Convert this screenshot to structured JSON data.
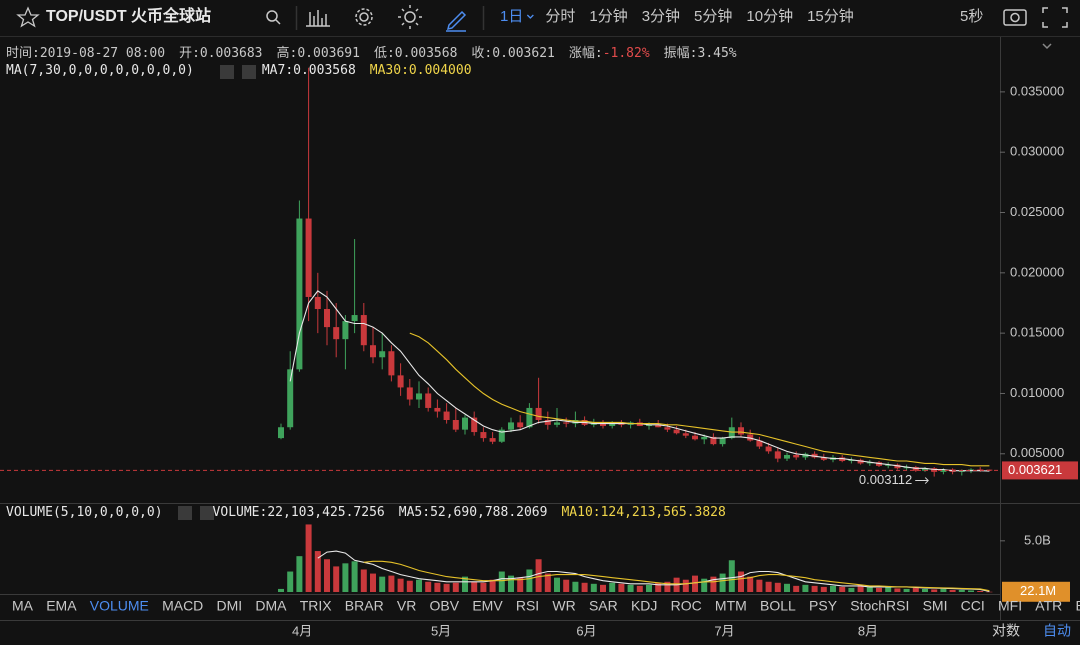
{
  "toolbar": {
    "symbol": "TOP/USDT 火币全球站",
    "intervals": [
      "1日",
      "分时",
      "1分钟",
      "3分钟",
      "5分钟",
      "10分钟",
      "15分钟"
    ],
    "active_interval": 0,
    "refresh": "5秒"
  },
  "info": [
    {
      "label": "时间:",
      "value": "2019-08-27 08:00"
    },
    {
      "label": "开:",
      "value": "0.003683"
    },
    {
      "label": "高:",
      "value": "0.003691"
    },
    {
      "label": "低:",
      "value": "0.003568"
    },
    {
      "label": "收:",
      "value": "0.003621"
    },
    {
      "label": "涨幅:",
      "value": "-1.82%"
    },
    {
      "label": "振幅:",
      "value": "3.45%"
    }
  ],
  "ma_legend": {
    "title": "MA(7,30,0,0,0,0,0,0,0,0)",
    "ma7": {
      "label": "MA7:",
      "value": "0.003568"
    },
    "ma30": {
      "label": "MA30:",
      "value": "0.004000"
    }
  },
  "volume_legend": {
    "title": "VOLUME(5,10,0,0,0,0)",
    "items": [
      {
        "label": "VOLUME:",
        "value": "22,103,425.7256"
      },
      {
        "label": "MA5:",
        "value": "52,690,788.2069"
      },
      {
        "label": "MA10:",
        "value": "124,213,565.3828"
      }
    ]
  },
  "chart_data": {
    "type": "candlestick",
    "up_color": "#3fa35c",
    "down_color": "#c9393c",
    "ma7_color": "#e8e8e8",
    "ma30_color": "#e6c229",
    "candles": {
      "open": [
        0.0063,
        0.0072,
        0.012,
        0.0245,
        0.018,
        0.017,
        0.0155,
        0.0145,
        0.016,
        0.0165,
        0.014,
        0.013,
        0.0135,
        0.0115,
        0.0105,
        0.0095,
        0.01,
        0.0088,
        0.0085,
        0.0078,
        0.007,
        0.008,
        0.0068,
        0.0063,
        0.006,
        0.007,
        0.0076,
        0.0072,
        0.0088,
        0.0078,
        0.0074,
        0.0076,
        0.0075,
        0.0078,
        0.0074,
        0.0076,
        0.0073,
        0.0075,
        0.0074,
        0.0076,
        0.0073,
        0.0074,
        0.0072,
        0.007,
        0.0067,
        0.0065,
        0.0062,
        0.0064,
        0.0058,
        0.0063,
        0.0072,
        0.0066,
        0.0061,
        0.0056,
        0.0052,
        0.0046,
        0.0049,
        0.0047,
        0.005,
        0.0047,
        0.0045,
        0.0047,
        0.0044,
        0.0045,
        0.0042,
        0.0043,
        0.004,
        0.0041,
        0.0038,
        0.0039,
        0.0036,
        0.0038,
        0.0035,
        0.0037,
        0.0035,
        0.0036,
        0.0037,
        0.003683
      ],
      "high": [
        0.0075,
        0.0135,
        0.026,
        0.037,
        0.02,
        0.0185,
        0.0175,
        0.0165,
        0.0228,
        0.0175,
        0.0155,
        0.015,
        0.014,
        0.0125,
        0.0112,
        0.011,
        0.0105,
        0.0095,
        0.0092,
        0.0088,
        0.0082,
        0.0085,
        0.0072,
        0.0068,
        0.0072,
        0.008,
        0.0082,
        0.0092,
        0.0113,
        0.0085,
        0.0088,
        0.008,
        0.0085,
        0.0081,
        0.0079,
        0.0078,
        0.0077,
        0.0078,
        0.0077,
        0.0079,
        0.0076,
        0.0078,
        0.0075,
        0.0073,
        0.007,
        0.0068,
        0.0066,
        0.0067,
        0.0064,
        0.008,
        0.0076,
        0.007,
        0.0064,
        0.0059,
        0.0055,
        0.0051,
        0.0052,
        0.0051,
        0.0052,
        0.005,
        0.0049,
        0.0049,
        0.0047,
        0.0046,
        0.0045,
        0.0044,
        0.0043,
        0.0042,
        0.0041,
        0.004,
        0.0039,
        0.0039,
        0.0038,
        0.0038,
        0.0037,
        0.0038,
        0.0039,
        0.003691
      ],
      "low": [
        0.0062,
        0.007,
        0.0118,
        0.016,
        0.015,
        0.014,
        0.013,
        0.012,
        0.015,
        0.0135,
        0.0125,
        0.012,
        0.011,
        0.0098,
        0.009,
        0.0088,
        0.0085,
        0.008,
        0.0075,
        0.0068,
        0.0066,
        0.0065,
        0.006,
        0.0058,
        0.0059,
        0.0068,
        0.007,
        0.0071,
        0.0075,
        0.007,
        0.0072,
        0.0072,
        0.0072,
        0.0073,
        0.0072,
        0.0071,
        0.0071,
        0.0072,
        0.0071,
        0.0073,
        0.007,
        0.0072,
        0.0068,
        0.0066,
        0.0063,
        0.0061,
        0.0058,
        0.0057,
        0.0056,
        0.0062,
        0.0064,
        0.006,
        0.0054,
        0.005,
        0.0043,
        0.0044,
        0.0045,
        0.0045,
        0.0046,
        0.0044,
        0.0043,
        0.0043,
        0.0042,
        0.0041,
        0.004,
        0.0039,
        0.0038,
        0.0037,
        0.0036,
        0.0035,
        0.0035,
        0.003112,
        0.0033,
        0.0033,
        0.0032,
        0.0034,
        0.0035,
        0.003568
      ],
      "close": [
        0.0072,
        0.012,
        0.0245,
        0.018,
        0.017,
        0.0155,
        0.0145,
        0.016,
        0.0165,
        0.014,
        0.013,
        0.0135,
        0.0115,
        0.0105,
        0.0095,
        0.01,
        0.0088,
        0.0085,
        0.0078,
        0.007,
        0.008,
        0.0068,
        0.0063,
        0.006,
        0.007,
        0.0076,
        0.0072,
        0.0088,
        0.0078,
        0.0074,
        0.0076,
        0.0075,
        0.0078,
        0.0074,
        0.0076,
        0.0073,
        0.0075,
        0.0074,
        0.0076,
        0.0073,
        0.0074,
        0.0072,
        0.007,
        0.0067,
        0.0065,
        0.0062,
        0.0064,
        0.0058,
        0.0063,
        0.0072,
        0.0066,
        0.0061,
        0.0056,
        0.0052,
        0.0046,
        0.0049,
        0.0047,
        0.005,
        0.0047,
        0.0045,
        0.0047,
        0.0044,
        0.0045,
        0.0042,
        0.0043,
        0.004,
        0.0041,
        0.0038,
        0.0039,
        0.0036,
        0.0038,
        0.0035,
        0.0037,
        0.0035,
        0.0036,
        0.0037,
        0.003683,
        0.003621
      ]
    },
    "ma7": [
      null,
      0.011,
      0.015,
      0.0175,
      0.0185,
      0.018,
      0.017,
      0.016,
      0.0158,
      0.0158,
      0.0155,
      0.015,
      0.0142,
      0.0135,
      0.0125,
      0.0115,
      0.0108,
      0.01,
      0.0094,
      0.0088,
      0.0083,
      0.0078,
      0.0073,
      0.007,
      0.0068,
      0.0069,
      0.007,
      0.0073,
      0.0076,
      0.0077,
      0.0078,
      0.0077,
      0.0076,
      0.0076,
      0.0075,
      0.0075,
      0.0075,
      0.0075,
      0.0075,
      0.0075,
      0.0074,
      0.0074,
      0.0073,
      0.0071,
      0.0069,
      0.0067,
      0.0065,
      0.0063,
      0.0063,
      0.0064,
      0.0064,
      0.0063,
      0.0061,
      0.0058,
      0.0055,
      0.0052,
      0.005,
      0.0049,
      0.0048,
      0.0047,
      0.0046,
      0.0046,
      0.0045,
      0.0044,
      0.0043,
      0.0042,
      0.0041,
      0.004,
      0.0039,
      0.0038,
      0.0038,
      0.0037,
      0.0037,
      0.0036,
      0.0036,
      0.0036,
      0.0036,
      0.003568
    ],
    "ma30": [
      null,
      null,
      null,
      null,
      null,
      null,
      null,
      null,
      null,
      null,
      null,
      null,
      null,
      null,
      0.015,
      0.0147,
      0.0142,
      0.0135,
      0.0128,
      0.012,
      0.0113,
      0.0106,
      0.01,
      0.0095,
      0.0091,
      0.0088,
      0.0085,
      0.0083,
      0.0081,
      0.008,
      0.0079,
      0.0078,
      0.0077,
      0.0077,
      0.0076,
      0.0076,
      0.0076,
      0.0076,
      0.0075,
      0.0075,
      0.0075,
      0.0075,
      0.0074,
      0.0074,
      0.0073,
      0.0072,
      0.0071,
      0.007,
      0.0069,
      0.0068,
      0.0068,
      0.0067,
      0.0066,
      0.0064,
      0.0062,
      0.006,
      0.0058,
      0.0056,
      0.0054,
      0.0052,
      0.0051,
      0.005,
      0.0049,
      0.0048,
      0.0047,
      0.0046,
      0.0045,
      0.0044,
      0.0044,
      0.0043,
      0.0042,
      0.0042,
      0.0041,
      0.0041,
      0.0041,
      0.004,
      0.004,
      0.004
    ],
    "ylim": [
      0.00092,
      0.0393
    ],
    "yticks": [
      {
        "value": 0.005,
        "label": "0.005000"
      },
      {
        "value": 0.01,
        "label": "0.010000"
      },
      {
        "value": 0.015,
        "label": "0.015000"
      },
      {
        "value": 0.02,
        "label": "0.020000"
      },
      {
        "value": 0.025,
        "label": "0.025000"
      },
      {
        "value": 0.03,
        "label": "0.030000"
      },
      {
        "value": 0.035,
        "label": "0.035000"
      }
    ],
    "x_ticks": [
      {
        "value": 2.3,
        "label": "4月"
      },
      {
        "value": 17.4,
        "label": "5月"
      },
      {
        "value": 33.2,
        "label": "6月"
      },
      {
        "value": 48.2,
        "label": "7月"
      },
      {
        "value": 63.8,
        "label": "8月"
      }
    ],
    "volume": [
      300000000.0,
      2000000000.0,
      3500000000.0,
      6600000000.0,
      4000000000.0,
      3200000000.0,
      2500000000.0,
      2800000000.0,
      3000000000.0,
      2200000000.0,
      1800000000.0,
      1500000000.0,
      1600000000.0,
      1300000000.0,
      1100000000.0,
      1200000000.0,
      1000000000.0,
      900000000.0,
      800000000.0,
      900000000.0,
      1500000000.0,
      1000000000.0,
      900000000.0,
      1200000000.0,
      2000000000.0,
      1600000000.0,
      1400000000.0,
      2200000000.0,
      3200000000.0,
      1800000000.0,
      1400000000.0,
      1200000000.0,
      1000000000.0,
      900000000.0,
      800000000.0,
      700000000.0,
      900000000.0,
      800000000.0,
      700000000.0,
      600000000.0,
      700000000.0,
      900000000.0,
      1000000000.0,
      1400000000.0,
      1200000000.0,
      1600000000.0,
      1300000000.0,
      1500000000.0,
      1800000000.0,
      3100000000.0,
      2000000000.0,
      1500000000.0,
      1200000000.0,
      1000000000.0,
      900000000.0,
      800000000.0,
      600000000.0,
      700000000.0,
      600000000.0,
      500000000.0,
      600000000.0,
      500000000.0,
      400000000.0,
      700000000.0,
      500000000.0,
      400000000.0,
      450000000.0,
      350000000.0,
      300000000.0,
      400000000.0,
      300000000.0,
      250000000.0,
      300000000.0,
      200000000.0,
      200000000.0,
      150000000.0,
      100000000.0,
      22103425.7256
    ],
    "volume_ma5": [
      null,
      null,
      null,
      null,
      3300000000.0,
      3900000000.0,
      4000000000.0,
      3800000000.0,
      3100000000.0,
      2900000000.0,
      2700000000.0,
      2300000000.0,
      2000000000.0,
      1700000000.0,
      1500000000.0,
      1300000000.0,
      1200000000.0,
      1100000000.0,
      1000000000.0,
      1000000000.0,
      1000000000.0,
      1000000000.0,
      1000000000.0,
      1100000000.0,
      1300000000.0,
      1300000000.0,
      1400000000.0,
      1500000000.0,
      1800000000.0,
      2000000000.0,
      2000000000.0,
      1900000000.0,
      1800000000.0,
      1500000000.0,
      1300000000.0,
      1100000000.0,
      1000000000.0,
      900000000.0,
      800000000.0,
      800000000.0,
      800000000.0,
      700000000.0,
      700000000.0,
      700000000.0,
      800000000.0,
      900000000.0,
      1000000000.0,
      1200000000.0,
      1300000000.0,
      1400000000.0,
      1500000000.0,
      1900000000.0,
      2000000000.0,
      2000000000.0,
      1900000000.0,
      1600000000.0,
      1300000000.0,
      1000000000.0,
      900000000.0,
      800000000.0,
      700000000.0,
      600000000.0,
      600000000.0,
      600000000.0,
      500000000.0,
      500000000.0,
      500000000.0,
      500000000.0,
      500000000.0,
      450000000.0,
      400000000.0,
      380000000.0,
      360000000.0,
      330000000.0,
      300000000.0,
      280000000.0,
      240000000.0,
      52690788.2069
    ],
    "volume_ma10": [
      null,
      null,
      null,
      null,
      null,
      null,
      null,
      null,
      null,
      2900000000.0,
      3000000000.0,
      3000000000.0,
      2900000000.0,
      2700000000.0,
      2400000000.0,
      2100000000.0,
      1900000000.0,
      1700000000.0,
      1500000000.0,
      1400000000.0,
      1300000000.0,
      1200000000.0,
      1100000000.0,
      1100000000.0,
      1100000000.0,
      1200000000.0,
      1200000000.0,
      1300000000.0,
      1500000000.0,
      1600000000.0,
      1700000000.0,
      1700000000.0,
      1700000000.0,
      1700000000.0,
      1600000000.0,
      1500000000.0,
      1400000000.0,
      1300000000.0,
      1200000000.0,
      1100000000.0,
      1000000000.0,
      900000000.0,
      800000000.0,
      800000000.0,
      800000000.0,
      900000000.0,
      1000000000.0,
      1000000000.0,
      1100000000.0,
      1200000000.0,
      1300000000.0,
      1400000000.0,
      1600000000.0,
      1700000000.0,
      1700000000.0,
      1600000000.0,
      1500000000.0,
      1400000000.0,
      1200000000.0,
      1100000000.0,
      1000000000.0,
      900000000.0,
      800000000.0,
      700000000.0,
      600000000.0,
      600000000.0,
      550000000.0,
      500000000.0,
      500000000.0,
      480000000.0,
      450000000.0,
      420000000.0,
      400000000.0,
      380000000.0,
      350000000.0,
      320000000.0,
      300000000.0,
      124213565.3828
    ],
    "volume_ylim": [
      0,
      8500000000.0
    ],
    "volume_yticks": [
      {
        "value": 5000000000.0,
        "label": "5.0B"
      }
    ],
    "volume_last": {
      "value": 22103425.7256,
      "label": "22.1M"
    }
  },
  "indicators": {
    "tabs": [
      "MA",
      "EMA",
      "VOLUME",
      "MACD",
      "DMI",
      "DMA",
      "TRIX",
      "BRAR",
      "VR",
      "OBV",
      "EMV",
      "RSI",
      "WR",
      "SAR",
      "KDJ",
      "ROC",
      "MTM",
      "BOLL",
      "PSY",
      "StochRSI",
      "SMI",
      "CCI",
      "MFI",
      "ATR",
      "BBW"
    ],
    "active": 2
  },
  "footer": {
    "log": "对数",
    "auto": "自动"
  }
}
